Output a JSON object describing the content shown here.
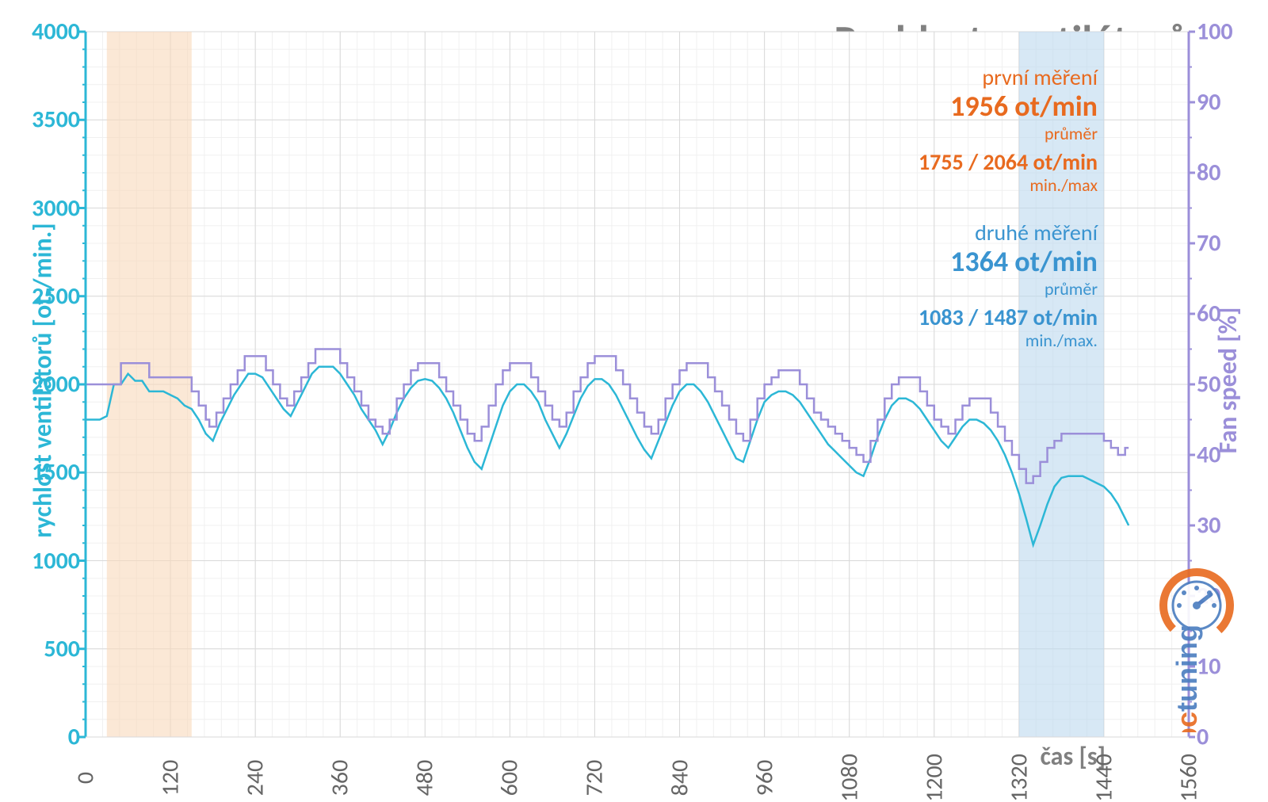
{
  "chart": {
    "type": "line-dual-axis",
    "title": "Rychlost ventilátorů",
    "title_color": "#808080",
    "title_fontsize": 54,
    "background_color": "#ffffff",
    "x_axis": {
      "label": "čas [s]",
      "label_color": "#808080",
      "min": 0,
      "max": 1560,
      "tick_step": 120,
      "tick_color": "#666666",
      "tick_fontsize": 30,
      "minor_step": 24
    },
    "y_left": {
      "label": "rychlost ventilátorů [ot./min.]",
      "label_color": "#2cb7d6",
      "tick_color": "#2cb7d6",
      "min": 0,
      "max": 4000,
      "tick_step": 500,
      "tick_fontsize": 30,
      "axis_line_width": 3
    },
    "y_right": {
      "label": "Fan speed [%]",
      "label_color": "#9b8fd9",
      "tick_color": "#9b8fd9",
      "min": 0,
      "max": 100,
      "tick_step": 10,
      "tick_fontsize": 30,
      "axis_line_width": 3
    },
    "grid": {
      "major_color": "#d9d9d9",
      "minor_color": "#f0f0f0",
      "major_width": 1,
      "minor_width": 1
    },
    "shaded_regions": [
      {
        "x_from": 30,
        "x_to": 150,
        "fill": "#f9d9bb",
        "opacity": 0.6,
        "name": "first-measurement-region"
      },
      {
        "x_from": 1320,
        "x_to": 1440,
        "fill": "#bcd9ef",
        "opacity": 0.6,
        "name": "second-measurement-region"
      }
    ],
    "series": [
      {
        "name": "rpm",
        "axis": "left",
        "color": "#2cb7d6",
        "line_width": 2.5,
        "data": [
          [
            0,
            1800
          ],
          [
            20,
            1800
          ],
          [
            30,
            1820
          ],
          [
            40,
            2000
          ],
          [
            50,
            2000
          ],
          [
            60,
            2060
          ],
          [
            70,
            2020
          ],
          [
            80,
            2020
          ],
          [
            90,
            1960
          ],
          [
            100,
            1960
          ],
          [
            110,
            1960
          ],
          [
            120,
            1940
          ],
          [
            130,
            1920
          ],
          [
            135,
            1900
          ],
          [
            140,
            1880
          ],
          [
            150,
            1860
          ],
          [
            160,
            1800
          ],
          [
            170,
            1720
          ],
          [
            180,
            1680
          ],
          [
            190,
            1780
          ],
          [
            200,
            1860
          ],
          [
            210,
            1940
          ],
          [
            220,
            2000
          ],
          [
            230,
            2060
          ],
          [
            240,
            2060
          ],
          [
            250,
            2040
          ],
          [
            260,
            1980
          ],
          [
            270,
            1920
          ],
          [
            280,
            1860
          ],
          [
            290,
            1820
          ],
          [
            300,
            1900
          ],
          [
            310,
            1980
          ],
          [
            320,
            2060
          ],
          [
            330,
            2100
          ],
          [
            340,
            2100
          ],
          [
            350,
            2100
          ],
          [
            360,
            2060
          ],
          [
            370,
            2000
          ],
          [
            380,
            1940
          ],
          [
            390,
            1860
          ],
          [
            400,
            1800
          ],
          [
            410,
            1740
          ],
          [
            420,
            1660
          ],
          [
            430,
            1740
          ],
          [
            440,
            1840
          ],
          [
            450,
            1920
          ],
          [
            460,
            1980
          ],
          [
            470,
            2020
          ],
          [
            480,
            2030
          ],
          [
            490,
            2020
          ],
          [
            500,
            1980
          ],
          [
            510,
            1920
          ],
          [
            520,
            1840
          ],
          [
            530,
            1740
          ],
          [
            540,
            1640
          ],
          [
            550,
            1560
          ],
          [
            560,
            1520
          ],
          [
            570,
            1640
          ],
          [
            580,
            1760
          ],
          [
            590,
            1880
          ],
          [
            600,
            1960
          ],
          [
            610,
            2000
          ],
          [
            620,
            2000
          ],
          [
            630,
            1960
          ],
          [
            640,
            1900
          ],
          [
            650,
            1800
          ],
          [
            660,
            1720
          ],
          [
            670,
            1640
          ],
          [
            680,
            1720
          ],
          [
            690,
            1820
          ],
          [
            700,
            1920
          ],
          [
            710,
            1990
          ],
          [
            720,
            2030
          ],
          [
            730,
            2030
          ],
          [
            740,
            2000
          ],
          [
            750,
            1940
          ],
          [
            760,
            1860
          ],
          [
            770,
            1780
          ],
          [
            780,
            1700
          ],
          [
            790,
            1630
          ],
          [
            800,
            1580
          ],
          [
            810,
            1680
          ],
          [
            820,
            1780
          ],
          [
            830,
            1880
          ],
          [
            840,
            1960
          ],
          [
            850,
            2000
          ],
          [
            860,
            2000
          ],
          [
            870,
            1960
          ],
          [
            880,
            1900
          ],
          [
            890,
            1820
          ],
          [
            900,
            1740
          ],
          [
            910,
            1660
          ],
          [
            920,
            1580
          ],
          [
            930,
            1560
          ],
          [
            940,
            1680
          ],
          [
            950,
            1800
          ],
          [
            960,
            1900
          ],
          [
            970,
            1940
          ],
          [
            980,
            1960
          ],
          [
            990,
            1960
          ],
          [
            1000,
            1940
          ],
          [
            1010,
            1900
          ],
          [
            1020,
            1840
          ],
          [
            1030,
            1780
          ],
          [
            1040,
            1720
          ],
          [
            1050,
            1660
          ],
          [
            1060,
            1620
          ],
          [
            1070,
            1580
          ],
          [
            1080,
            1540
          ],
          [
            1090,
            1500
          ],
          [
            1100,
            1480
          ],
          [
            1110,
            1580
          ],
          [
            1120,
            1700
          ],
          [
            1130,
            1800
          ],
          [
            1140,
            1880
          ],
          [
            1150,
            1920
          ],
          [
            1160,
            1920
          ],
          [
            1170,
            1900
          ],
          [
            1180,
            1860
          ],
          [
            1190,
            1800
          ],
          [
            1200,
            1740
          ],
          [
            1210,
            1680
          ],
          [
            1220,
            1640
          ],
          [
            1230,
            1700
          ],
          [
            1240,
            1760
          ],
          [
            1250,
            1800
          ],
          [
            1260,
            1800
          ],
          [
            1270,
            1780
          ],
          [
            1280,
            1740
          ],
          [
            1290,
            1680
          ],
          [
            1300,
            1600
          ],
          [
            1310,
            1500
          ],
          [
            1320,
            1380
          ],
          [
            1330,
            1240
          ],
          [
            1340,
            1090
          ],
          [
            1350,
            1200
          ],
          [
            1360,
            1320
          ],
          [
            1370,
            1420
          ],
          [
            1380,
            1470
          ],
          [
            1390,
            1480
          ],
          [
            1400,
            1480
          ],
          [
            1410,
            1480
          ],
          [
            1420,
            1460
          ],
          [
            1430,
            1440
          ],
          [
            1440,
            1420
          ],
          [
            1450,
            1380
          ],
          [
            1460,
            1320
          ],
          [
            1470,
            1240
          ],
          [
            1475,
            1200
          ]
        ]
      },
      {
        "name": "percent",
        "axis": "right",
        "color": "#9b8fd9",
        "line_width": 2.5,
        "step": true,
        "data": [
          [
            0,
            50
          ],
          [
            40,
            50
          ],
          [
            50,
            53
          ],
          [
            80,
            53
          ],
          [
            90,
            51
          ],
          [
            140,
            51
          ],
          [
            150,
            49
          ],
          [
            160,
            47
          ],
          [
            170,
            45
          ],
          [
            175,
            44
          ],
          [
            185,
            46
          ],
          [
            195,
            48
          ],
          [
            205,
            50
          ],
          [
            215,
            52
          ],
          [
            225,
            54
          ],
          [
            245,
            54
          ],
          [
            255,
            52
          ],
          [
            265,
            50
          ],
          [
            275,
            48
          ],
          [
            285,
            47
          ],
          [
            295,
            49
          ],
          [
            305,
            51
          ],
          [
            315,
            53
          ],
          [
            325,
            55
          ],
          [
            350,
            55
          ],
          [
            360,
            53
          ],
          [
            370,
            51
          ],
          [
            380,
            49
          ],
          [
            390,
            47
          ],
          [
            400,
            45
          ],
          [
            410,
            44
          ],
          [
            420,
            43
          ],
          [
            430,
            45
          ],
          [
            440,
            48
          ],
          [
            450,
            50
          ],
          [
            460,
            52
          ],
          [
            470,
            53
          ],
          [
            490,
            53
          ],
          [
            500,
            51
          ],
          [
            510,
            49
          ],
          [
            520,
            47
          ],
          [
            530,
            45
          ],
          [
            540,
            43
          ],
          [
            550,
            42
          ],
          [
            560,
            44
          ],
          [
            570,
            47
          ],
          [
            580,
            50
          ],
          [
            590,
            52
          ],
          [
            600,
            53
          ],
          [
            620,
            53
          ],
          [
            630,
            51
          ],
          [
            640,
            49
          ],
          [
            650,
            47
          ],
          [
            660,
            45
          ],
          [
            670,
            44
          ],
          [
            680,
            46
          ],
          [
            690,
            49
          ],
          [
            700,
            51
          ],
          [
            710,
            53
          ],
          [
            720,
            54
          ],
          [
            740,
            54
          ],
          [
            750,
            52
          ],
          [
            760,
            50
          ],
          [
            770,
            48
          ],
          [
            780,
            46
          ],
          [
            790,
            44
          ],
          [
            800,
            43
          ],
          [
            810,
            45
          ],
          [
            820,
            48
          ],
          [
            830,
            50
          ],
          [
            840,
            52
          ],
          [
            850,
            53
          ],
          [
            870,
            53
          ],
          [
            880,
            51
          ],
          [
            890,
            49
          ],
          [
            900,
            47
          ],
          [
            910,
            45
          ],
          [
            920,
            43
          ],
          [
            930,
            42
          ],
          [
            940,
            45
          ],
          [
            950,
            48
          ],
          [
            960,
            50
          ],
          [
            970,
            51
          ],
          [
            980,
            52
          ],
          [
            1000,
            52
          ],
          [
            1010,
            50
          ],
          [
            1020,
            48
          ],
          [
            1030,
            46
          ],
          [
            1040,
            45
          ],
          [
            1050,
            44
          ],
          [
            1060,
            43
          ],
          [
            1070,
            42
          ],
          [
            1080,
            41
          ],
          [
            1090,
            40
          ],
          [
            1100,
            39
          ],
          [
            1110,
            42
          ],
          [
            1120,
            45
          ],
          [
            1130,
            48
          ],
          [
            1140,
            50
          ],
          [
            1150,
            51
          ],
          [
            1170,
            51
          ],
          [
            1180,
            49
          ],
          [
            1190,
            47
          ],
          [
            1200,
            45
          ],
          [
            1210,
            44
          ],
          [
            1220,
            43
          ],
          [
            1230,
            45
          ],
          [
            1240,
            47
          ],
          [
            1250,
            48
          ],
          [
            1270,
            48
          ],
          [
            1280,
            46
          ],
          [
            1290,
            44
          ],
          [
            1300,
            42
          ],
          [
            1310,
            40
          ],
          [
            1320,
            38
          ],
          [
            1330,
            36
          ],
          [
            1340,
            37
          ],
          [
            1350,
            39
          ],
          [
            1360,
            41
          ],
          [
            1370,
            42
          ],
          [
            1380,
            43
          ],
          [
            1430,
            43
          ],
          [
            1440,
            42
          ],
          [
            1450,
            41
          ],
          [
            1460,
            40
          ],
          [
            1470,
            41
          ],
          [
            1475,
            41
          ]
        ]
      }
    ],
    "annotations": {
      "first": {
        "title": "první měření",
        "avg_value": "1956 ot/min",
        "avg_label": "průměr",
        "minmax_value": "1755 / 2064 ot/min",
        "minmax_label": "min./max",
        "color": "#e86a1f"
      },
      "second": {
        "title": "druhé měření",
        "avg_value": "1364 ot/min",
        "avg_label": "průměr",
        "minmax_value": "1083 / 1487 ot/min",
        "minmax_label": "min./max.",
        "color": "#3a94d0"
      }
    },
    "watermark": {
      "text_pc": "pc",
      "text_tuning": "tuning",
      "color_pc": "#e86a1f",
      "color_tuning": "#4a7dbf"
    }
  }
}
